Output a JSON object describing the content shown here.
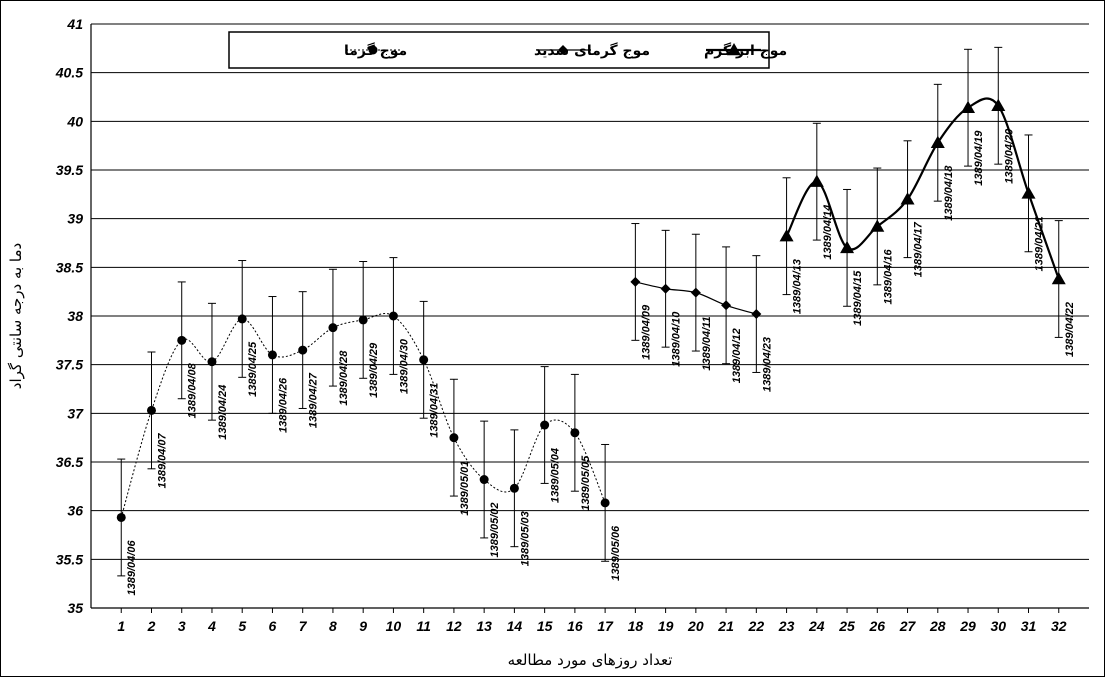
{
  "chart_data": {
    "type": "line",
    "xlabel": "تعداد روزهای مورد مطالعه",
    "ylabel": "دما به درجه سانتی گراد",
    "ylim": [
      35,
      41
    ],
    "yticks": [
      35,
      35.5,
      36,
      36.5,
      37,
      37.5,
      38,
      38.5,
      39,
      39.5,
      40,
      40.5,
      41
    ],
    "xlim": [
      0,
      33
    ],
    "xticks": [
      1,
      2,
      3,
      4,
      5,
      6,
      7,
      8,
      9,
      10,
      11,
      12,
      13,
      14,
      15,
      16,
      17,
      18,
      19,
      20,
      21,
      22,
      23,
      24,
      25,
      26,
      27,
      28,
      29,
      30,
      31,
      32
    ],
    "grid": "horizontal",
    "legend_position": "top",
    "series": [
      {
        "name": "موج گرما",
        "style": "dotted",
        "marker": "circle",
        "points": [
          {
            "x": 1,
            "y": 35.93,
            "err": 0.6,
            "label": "1389/04/06"
          },
          {
            "x": 2,
            "y": 37.03,
            "err": 0.6,
            "label": "1389/04/07"
          },
          {
            "x": 3,
            "y": 37.75,
            "err": 0.6,
            "label": "1389/04/08"
          },
          {
            "x": 4,
            "y": 37.53,
            "err": 0.6,
            "label": "1389/04/24"
          },
          {
            "x": 5,
            "y": 37.97,
            "err": 0.6,
            "label": "1389/04/25"
          },
          {
            "x": 6,
            "y": 37.6,
            "err": 0.6,
            "label": "1389/04/26"
          },
          {
            "x": 7,
            "y": 37.65,
            "err": 0.6,
            "label": "1389/04/27"
          },
          {
            "x": 8,
            "y": 37.88,
            "err": 0.6,
            "label": "1389/04/28"
          },
          {
            "x": 9,
            "y": 37.96,
            "err": 0.6,
            "label": "1389/04/29"
          },
          {
            "x": 10,
            "y": 38.0,
            "err": 0.6,
            "label": "1389/04/30"
          },
          {
            "x": 11,
            "y": 37.55,
            "err": 0.6,
            "label": "1389/04/31"
          },
          {
            "x": 12,
            "y": 36.75,
            "err": 0.6,
            "label": "1389/05/01"
          },
          {
            "x": 13,
            "y": 36.32,
            "err": 0.6,
            "label": "1389/05/02"
          },
          {
            "x": 14,
            "y": 36.23,
            "err": 0.6,
            "label": "1389/05/03"
          },
          {
            "x": 15,
            "y": 36.88,
            "err": 0.6,
            "label": "1389/05/04"
          },
          {
            "x": 16,
            "y": 36.8,
            "err": 0.6,
            "label": "1389/05/05"
          },
          {
            "x": 17,
            "y": 36.08,
            "err": 0.6,
            "label": "1389/05/06"
          }
        ]
      },
      {
        "name": "موج گرمای شدید",
        "style": "solid",
        "marker": "diamond",
        "points": [
          {
            "x": 18,
            "y": 38.35,
            "err": 0.6,
            "label": "1389/04/09"
          },
          {
            "x": 19,
            "y": 38.28,
            "err": 0.6,
            "label": "1389/04/10"
          },
          {
            "x": 20,
            "y": 38.24,
            "err": 0.6,
            "label": "1389/04/11"
          },
          {
            "x": 21,
            "y": 38.11,
            "err": 0.6,
            "label": "1389/04/12"
          },
          {
            "x": 22,
            "y": 38.02,
            "err": 0.6,
            "label": "1389/04/23"
          }
        ]
      },
      {
        "name": "موج ابر گرم",
        "style": "bold",
        "marker": "triangle",
        "points": [
          {
            "x": 23,
            "y": 38.82,
            "err": 0.6,
            "label": "1389/04/13"
          },
          {
            "x": 24,
            "y": 39.38,
            "err": 0.6,
            "label": "1389/04/14"
          },
          {
            "x": 25,
            "y": 38.7,
            "err": 0.6,
            "label": "1389/04/15"
          },
          {
            "x": 26,
            "y": 38.92,
            "err": 0.6,
            "label": "1389/04/16"
          },
          {
            "x": 27,
            "y": 39.2,
            "err": 0.6,
            "label": "1389/04/17"
          },
          {
            "x": 28,
            "y": 39.78,
            "err": 0.6,
            "label": "1389/04/18"
          },
          {
            "x": 29,
            "y": 40.14,
            "err": 0.6,
            "label": "1389/04/19"
          },
          {
            "x": 30,
            "y": 40.16,
            "err": 0.6,
            "label": "1389/04/20"
          },
          {
            "x": 31,
            "y": 39.26,
            "err": 0.6,
            "label": "1389/04/21"
          },
          {
            "x": 32,
            "y": 38.38,
            "err": 0.6,
            "label": "1389/04/22"
          }
        ]
      }
    ]
  },
  "legend": {
    "items": [
      {
        "label": "موج ابر گرم",
        "marker": "triangle",
        "style": "bold"
      },
      {
        "label": "موج گرمای شدید",
        "marker": "diamond",
        "style": "solid"
      },
      {
        "label": "موج گرما",
        "marker": "circle",
        "style": "dotted"
      }
    ]
  },
  "colors": {
    "line": "#000000",
    "grid": "#000000",
    "background": "#ffffff"
  }
}
